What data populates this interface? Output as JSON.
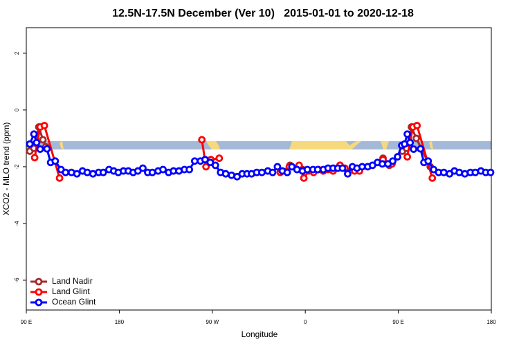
{
  "chart_data": {
    "type": "line",
    "title": "12.5N-17.5N December (Ver 10)   2015-01-01 to 2020-12-18",
    "x_label": "Longitude",
    "y_label": "XCO2 - MLO trend (ppm)",
    "xlim": [
      90,
      540
    ],
    "xticks": [
      {
        "value": 90,
        "label": "90 E"
      },
      {
        "value": 180,
        "label": "180"
      },
      {
        "value": 270,
        "label": "90 W"
      },
      {
        "value": 360,
        "label": "0"
      },
      {
        "value": 450,
        "label": "90 E"
      },
      {
        "value": 540,
        "label": "180"
      }
    ],
    "ylim": [
      -7.05,
      2.9
    ],
    "yticks": [
      -6,
      -4,
      -2,
      0,
      2
    ],
    "legend": "bottom-left",
    "series": [
      {
        "name": "Land Nadir",
        "color": "#a52a2a",
        "x": [
          93.4,
          97.4,
          102.1,
          106.1,
          108.8,
          null,
          345.2,
          357.3,
          null,
          393.6,
          null,
          435.2,
          441.3,
          null,
          454,
          458,
          462.7,
          467.4,
          480.9
        ],
        "values": [
          -1.45,
          -1.35,
          -0.6,
          -1.05,
          -1.3,
          null,
          -1.95,
          -2.1,
          null,
          -1.95,
          null,
          -1.7,
          -1.95,
          null,
          -1.45,
          -1.35,
          -0.6,
          -1.0,
          -2.0
        ]
      },
      {
        "name": "Land Glint",
        "color": "#ff0000",
        "x": [
          98.1,
          103.4,
          107.5,
          122.2,
          null,
          259.9,
          263.9,
          268.6,
          276.7,
          null,
          335.8,
          344.5,
          354,
          358.6,
          363.3,
          368,
          372.7,
          377.4,
          382.2,
          386.9,
          393.6,
          398.3,
          407.7,
          412.4,
          null,
          435.2,
          443.9,
          null,
          458.7,
          464.1,
          468.1,
          482.9
        ],
        "values": [
          -1.68,
          -0.6,
          -0.55,
          -2.4,
          null,
          -1.05,
          -2.0,
          -1.75,
          -1.7,
          null,
          -2.2,
          -2.0,
          -1.95,
          -2.4,
          -2.15,
          -2.2,
          -2.1,
          -2.15,
          -2.1,
          -2.15,
          -1.95,
          -2.05,
          -2.15,
          -2.15,
          null,
          -1.75,
          -1.9,
          null,
          -1.65,
          -0.6,
          -0.55,
          -2.4
        ]
      },
      {
        "name": "Ocean Glint",
        "color": "#0000ff",
        "x": [
          93.4,
          97.4,
          100,
          103.4,
          110,
          113.5,
          118,
          123.6,
          128,
          133.7,
          139,
          144.4,
          149,
          154.5,
          160,
          164.5,
          170,
          174.6,
          179,
          184,
          188.7,
          193.4,
          198,
          202.8,
          207.5,
          212,
          217.6,
          222.3,
          227.7,
          232.4,
          237.7,
          243,
          247.8,
          253,
          258.5,
          263,
          268,
          273,
          278,
          283,
          288.6,
          294,
          298.9,
          303.6,
          308,
          313,
          318,
          323.7,
          328.4,
          333,
          337.8,
          342.5,
          347,
          352,
          357.3,
          362,
          367.4,
          372,
          377.4,
          382,
          386.9,
          391.5,
          396,
          401,
          405.6,
          410,
          415,
          420.4,
          425,
          429.8,
          434.5,
          440,
          444.6,
          449.3,
          453.3,
          456,
          458.7,
          461.4,
          464.8,
          471.5,
          474.8,
          478.9,
          484.2,
          489,
          494,
          499.6,
          504.3,
          509,
          514.4,
          519.8,
          524.5,
          529.9,
          534.6,
          539.3
        ],
        "values": [
          -1.2,
          -0.85,
          -1.15,
          -1.38,
          -1.37,
          -1.85,
          -1.8,
          -2.1,
          -2.2,
          -2.2,
          -2.25,
          -2.15,
          -2.2,
          -2.25,
          -2.2,
          -2.2,
          -2.1,
          -2.15,
          -2.2,
          -2.15,
          -2.15,
          -2.2,
          -2.15,
          -2.05,
          -2.2,
          -2.2,
          -2.15,
          -2.1,
          -2.2,
          -2.15,
          -2.15,
          -2.1,
          -2.1,
          -1.8,
          -1.8,
          -1.75,
          -1.85,
          -1.95,
          -2.2,
          -2.25,
          -2.3,
          -2.35,
          -2.25,
          -2.25,
          -2.25,
          -2.2,
          -2.2,
          -2.15,
          -2.2,
          -2.0,
          -2.15,
          -2.2,
          -2.0,
          -2.1,
          -2.15,
          -2.1,
          -2.1,
          -2.1,
          -2.1,
          -2.05,
          -2.05,
          -2.05,
          -2.05,
          -2.25,
          -2.0,
          -2.05,
          -2.0,
          -2.0,
          -1.95,
          -1.85,
          -1.9,
          -1.9,
          -1.8,
          -1.65,
          -1.25,
          -1.2,
          -0.85,
          -1.15,
          -1.38,
          -1.37,
          -1.85,
          -1.8,
          -2.1,
          -2.2,
          -2.2,
          -2.25,
          -2.15,
          -2.2,
          -2.25,
          -2.2,
          -2.2,
          -2.15,
          -2.2,
          -2.2
        ]
      }
    ]
  }
}
